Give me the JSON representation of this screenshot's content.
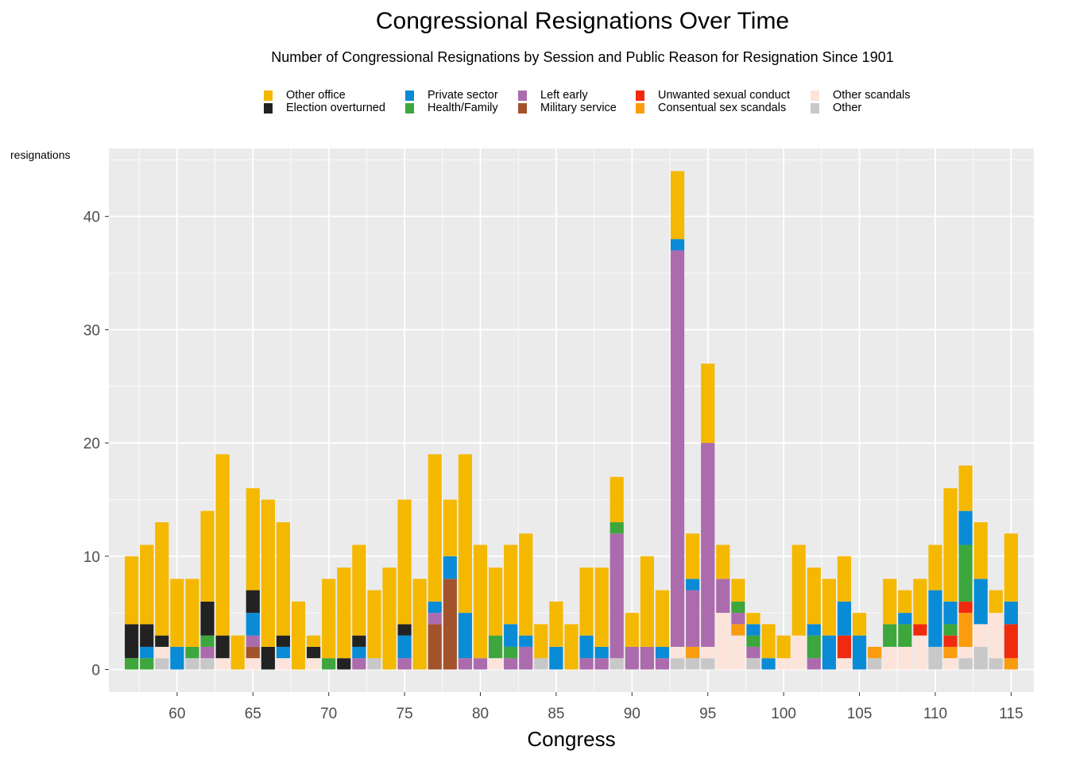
{
  "title": "Congressional Resignations Over Time",
  "subtitle": "Number of Congressional Resignations by Session and Public Reason for Resignation Since 1901",
  "colors": {
    "panel_bg": "#EBEBEB",
    "grid": "#FFFFFF",
    "axis_text": "#4D4D4D"
  },
  "legend": [
    {
      "name": "Other office",
      "color": "#F5B800"
    },
    {
      "name": "Election overturned",
      "color": "#222222"
    },
    {
      "name": "Private sector",
      "color": "#0A8BD6"
    },
    {
      "name": "Health/Family",
      "color": "#3DA63D"
    },
    {
      "name": "Left early",
      "color": "#AC6BAD"
    },
    {
      "name": "Military service",
      "color": "#A3532C"
    },
    {
      "name": "Unwanted sexual conduct",
      "color": "#F02A0F"
    },
    {
      "name": "Consentual sex scandals",
      "color": "#FA9C0E"
    },
    {
      "name": "Other scandals",
      "color": "#FDE4DB"
    },
    {
      "name": "Other",
      "color": "#C8C8C8"
    }
  ],
  "chart_data": {
    "type": "bar",
    "stacked": true,
    "title": "Congressional Resignations Over Time",
    "subtitle": "Number of Congressional Resignations by Session and Public Reason for Resignation Since 1901",
    "xlabel": "Congress",
    "ylabel": "resignations",
    "xlim": [
      55.5,
      116.5
    ],
    "ylim": [
      -2,
      46
    ],
    "x_ticks": [
      60,
      65,
      70,
      75,
      80,
      85,
      90,
      95,
      100,
      105,
      110,
      115
    ],
    "y_ticks": [
      0,
      10,
      20,
      30,
      40
    ],
    "grid": true,
    "legend_position": "top",
    "stack_order": [
      "Other",
      "Other scandals",
      "Consentual sex scandals",
      "Unwanted sexual conduct",
      "Military service",
      "Left early",
      "Health/Family",
      "Private sector",
      "Election overturned",
      "Other office"
    ],
    "bars": [
      {
        "x": 57,
        "values": {
          "Health/Family": 1,
          "Election overturned": 3,
          "Other office": 6
        }
      },
      {
        "x": 58,
        "values": {
          "Health/Family": 1,
          "Private sector": 1,
          "Election overturned": 2,
          "Other office": 7
        }
      },
      {
        "x": 59,
        "values": {
          "Other": 1,
          "Other scandals": 1,
          "Election overturned": 1,
          "Other office": 10
        }
      },
      {
        "x": 60,
        "values": {
          "Private sector": 2,
          "Other office": 6
        }
      },
      {
        "x": 61,
        "values": {
          "Other": 1,
          "Health/Family": 1,
          "Other office": 6
        }
      },
      {
        "x": 62,
        "values": {
          "Other": 1,
          "Left early": 1,
          "Health/Family": 1,
          "Election overturned": 3,
          "Other office": 8
        }
      },
      {
        "x": 63,
        "values": {
          "Other scandals": 1,
          "Election overturned": 2,
          "Other office": 16
        }
      },
      {
        "x": 64,
        "values": {
          "Other office": 3
        }
      },
      {
        "x": 65,
        "values": {
          "Other scandals": 1,
          "Military service": 1,
          "Left early": 1,
          "Private sector": 2,
          "Election overturned": 2,
          "Other office": 9
        }
      },
      {
        "x": 66,
        "values": {
          "Election overturned": 2,
          "Other office": 13
        }
      },
      {
        "x": 67,
        "values": {
          "Other scandals": 1,
          "Private sector": 1,
          "Election overturned": 1,
          "Other office": 10
        }
      },
      {
        "x": 68,
        "values": {
          "Other office": 6
        }
      },
      {
        "x": 69,
        "values": {
          "Other scandals": 1,
          "Election overturned": 1,
          "Other office": 1
        }
      },
      {
        "x": 70,
        "values": {
          "Health/Family": 1,
          "Other office": 7
        }
      },
      {
        "x": 71,
        "values": {
          "Election overturned": 1,
          "Other office": 8
        }
      },
      {
        "x": 72,
        "values": {
          "Left early": 1,
          "Private sector": 1,
          "Election overturned": 1,
          "Other office": 8
        }
      },
      {
        "x": 73,
        "values": {
          "Other": 1,
          "Other office": 6
        }
      },
      {
        "x": 74,
        "values": {
          "Other office": 9
        }
      },
      {
        "x": 75,
        "values": {
          "Left early": 1,
          "Private sector": 2,
          "Election overturned": 1,
          "Other office": 11
        }
      },
      {
        "x": 76,
        "values": {
          "Other office": 8
        }
      },
      {
        "x": 77,
        "values": {
          "Military service": 4,
          "Left early": 1,
          "Private sector": 1,
          "Other office": 13
        }
      },
      {
        "x": 78,
        "values": {
          "Military service": 8,
          "Private sector": 2,
          "Other office": 5
        }
      },
      {
        "x": 79,
        "values": {
          "Left early": 1,
          "Private sector": 4,
          "Other office": 14
        }
      },
      {
        "x": 80,
        "values": {
          "Left early": 1,
          "Other office": 10
        }
      },
      {
        "x": 81,
        "values": {
          "Other scandals": 1,
          "Health/Family": 2,
          "Other office": 6
        }
      },
      {
        "x": 82,
        "values": {
          "Left early": 1,
          "Health/Family": 1,
          "Private sector": 2,
          "Other office": 7
        }
      },
      {
        "x": 83,
        "values": {
          "Left early": 2,
          "Private sector": 1,
          "Other office": 9
        }
      },
      {
        "x": 84,
        "values": {
          "Other": 1,
          "Other office": 3
        }
      },
      {
        "x": 85,
        "values": {
          "Private sector": 2,
          "Other office": 4
        }
      },
      {
        "x": 86,
        "values": {
          "Other office": 4
        }
      },
      {
        "x": 87,
        "values": {
          "Left early": 1,
          "Private sector": 2,
          "Other office": 6
        }
      },
      {
        "x": 88,
        "values": {
          "Left early": 1,
          "Private sector": 1,
          "Other office": 7
        }
      },
      {
        "x": 89,
        "values": {
          "Other": 1,
          "Left early": 11,
          "Health/Family": 1,
          "Other office": 4
        }
      },
      {
        "x": 90,
        "values": {
          "Left early": 2,
          "Other office": 3
        }
      },
      {
        "x": 91,
        "values": {
          "Left early": 2,
          "Other office": 8
        }
      },
      {
        "x": 92,
        "values": {
          "Left early": 1,
          "Private sector": 1,
          "Other office": 5
        }
      },
      {
        "x": 93,
        "values": {
          "Other": 1,
          "Other scandals": 1,
          "Left early": 35,
          "Private sector": 1,
          "Other office": 6
        }
      },
      {
        "x": 94,
        "values": {
          "Other": 1,
          "Consentual sex scandals": 1,
          "Left early": 5,
          "Private sector": 1,
          "Other office": 4
        }
      },
      {
        "x": 95,
        "values": {
          "Other": 1,
          "Other scandals": 1,
          "Left early": 18,
          "Other office": 7
        }
      },
      {
        "x": 96,
        "values": {
          "Other scandals": 5,
          "Left early": 3,
          "Other office": 3
        }
      },
      {
        "x": 97,
        "values": {
          "Other scandals": 3,
          "Consentual sex scandals": 1,
          "Left early": 1,
          "Health/Family": 1,
          "Other office": 2
        }
      },
      {
        "x": 98,
        "values": {
          "Other": 1,
          "Left early": 1,
          "Health/Family": 1,
          "Private sector": 1,
          "Other office": 1
        }
      },
      {
        "x": 99,
        "values": {
          "Private sector": 1,
          "Other office": 3
        }
      },
      {
        "x": 100,
        "values": {
          "Other scandals": 1,
          "Other office": 2
        }
      },
      {
        "x": 101,
        "values": {
          "Other scandals": 3,
          "Other office": 8
        }
      },
      {
        "x": 102,
        "values": {
          "Left early": 1,
          "Health/Family": 2,
          "Private sector": 1,
          "Other office": 5
        }
      },
      {
        "x": 103,
        "values": {
          "Private sector": 3,
          "Other office": 5
        }
      },
      {
        "x": 104,
        "values": {
          "Other scandals": 1,
          "Unwanted sexual conduct": 2,
          "Private sector": 3,
          "Other office": 4
        }
      },
      {
        "x": 105,
        "values": {
          "Private sector": 3,
          "Other office": 2
        }
      },
      {
        "x": 106,
        "values": {
          "Other": 1,
          "Consentual sex scandals": 1
        }
      },
      {
        "x": 107,
        "values": {
          "Other scandals": 2,
          "Health/Family": 2,
          "Other office": 4
        }
      },
      {
        "x": 108,
        "values": {
          "Other scandals": 2,
          "Health/Family": 2,
          "Private sector": 1,
          "Other office": 2
        }
      },
      {
        "x": 109,
        "values": {
          "Other scandals": 3,
          "Unwanted sexual conduct": 1,
          "Other office": 4
        }
      },
      {
        "x": 110,
        "values": {
          "Other": 2,
          "Private sector": 5,
          "Other office": 4
        }
      },
      {
        "x": 111,
        "values": {
          "Other scandals": 1,
          "Consentual sex scandals": 1,
          "Unwanted sexual conduct": 1,
          "Health/Family": 1,
          "Private sector": 2,
          "Other office": 10
        }
      },
      {
        "x": 112,
        "values": {
          "Other": 1,
          "Other scandals": 1,
          "Consentual sex scandals": 3,
          "Unwanted sexual conduct": 1,
          "Health/Family": 5,
          "Private sector": 3,
          "Other office": 4
        }
      },
      {
        "x": 113,
        "values": {
          "Other": 2,
          "Other scandals": 2,
          "Private sector": 4,
          "Other office": 5
        }
      },
      {
        "x": 114,
        "values": {
          "Other": 1,
          "Other scandals": 4,
          "Other office": 2
        }
      },
      {
        "x": 115,
        "values": {
          "Consentual sex scandals": 1,
          "Unwanted sexual conduct": 3,
          "Private sector": 2,
          "Other office": 6
        }
      }
    ]
  }
}
